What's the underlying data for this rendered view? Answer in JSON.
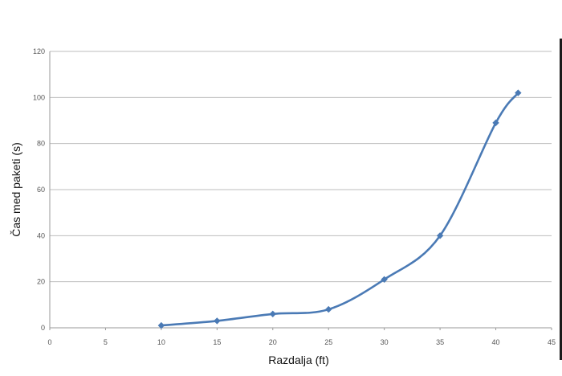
{
  "chart_data": {
    "type": "line",
    "title": "",
    "xlabel": "Razdalja (ft)",
    "ylabel": "Čas med paketi (s)",
    "xlim": [
      0,
      45
    ],
    "ylim": [
      0,
      120
    ],
    "xticks": [
      0,
      5,
      10,
      15,
      20,
      25,
      30,
      35,
      40,
      45
    ],
    "yticks": [
      0,
      20,
      40,
      60,
      80,
      100,
      120
    ],
    "grid": "horizontal",
    "legend": "none",
    "smooth": true,
    "series": [
      {
        "color": "#4a7ab5",
        "marker": "diamond",
        "x": [
          10,
          15,
          20,
          25,
          30,
          35,
          40,
          42
        ],
        "y": [
          1,
          3,
          6,
          8,
          21,
          40,
          89,
          102
        ]
      }
    ]
  }
}
